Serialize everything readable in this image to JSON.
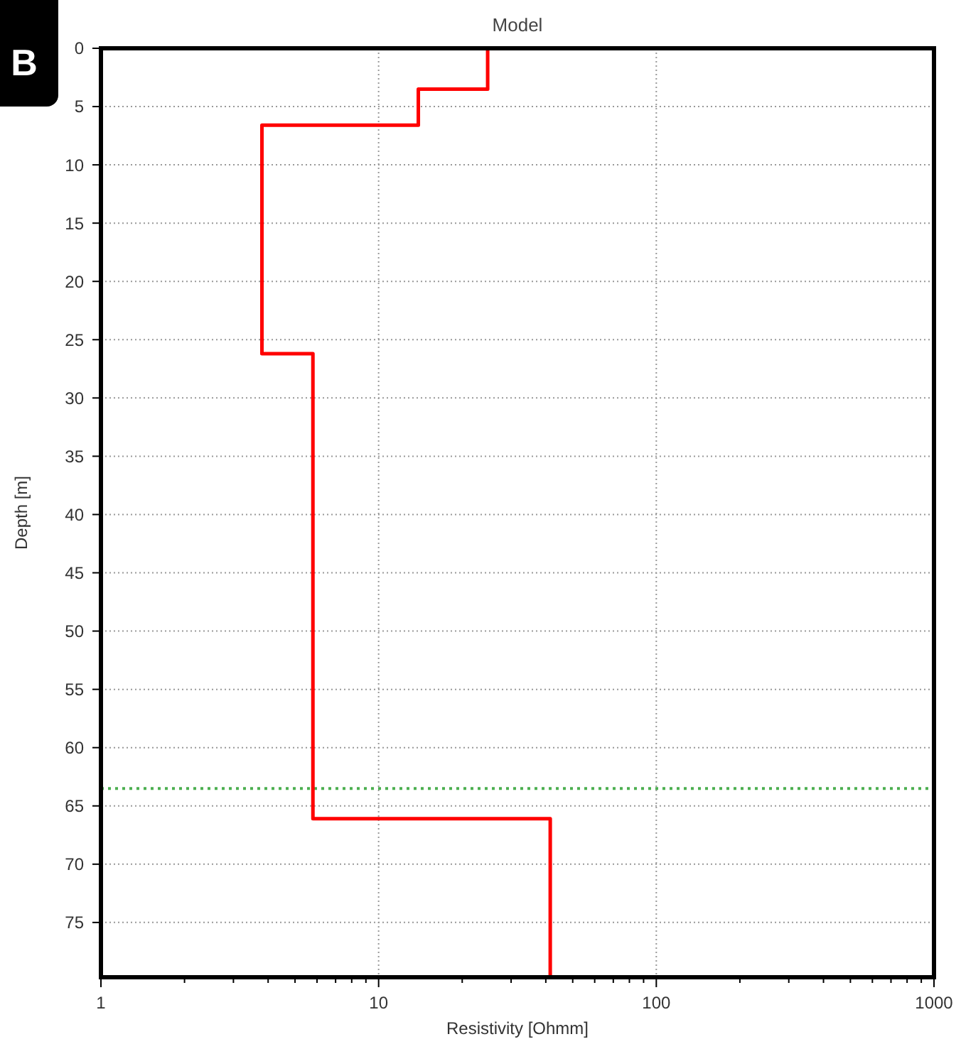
{
  "chart_data": {
    "type": "line",
    "title": "Model",
    "xlabel": "Resistivity [Ohmm]",
    "ylabel": "Depth [m]",
    "annotations": [
      "B"
    ],
    "log": "x",
    "xlim": [
      1,
      1000
    ],
    "ylim": [
      79.7,
      0
    ],
    "xticks": [
      1,
      {
        "value": 2,
        "label": null
      },
      {
        "value": 3,
        "label": null
      },
      {
        "value": 4,
        "label": null
      },
      {
        "value": 5,
        "label": null
      },
      {
        "value": 6,
        "label": null
      },
      {
        "value": 7,
        "label": null
      },
      {
        "value": 8,
        "label": null
      },
      {
        "value": 9,
        "label": null
      },
      10,
      {
        "value": 20,
        "label": null
      },
      {
        "value": 30,
        "label": null
      },
      {
        "value": 40,
        "label": null
      },
      {
        "value": 50,
        "label": null
      },
      {
        "value": 60,
        "label": null
      },
      {
        "value": 70,
        "label": null
      },
      {
        "value": 80,
        "label": null
      },
      {
        "value": 90,
        "label": null
      },
      100,
      {
        "value": 200,
        "label": null
      },
      {
        "value": 300,
        "label": null
      },
      {
        "value": 400,
        "label": null
      },
      {
        "value": 500,
        "label": null
      },
      {
        "value": 600,
        "label": null
      },
      {
        "value": 700,
        "label": null
      },
      {
        "value": 800,
        "label": null
      },
      {
        "value": 900,
        "label": null
      },
      1000
    ],
    "yticks": [
      0,
      5,
      10,
      15,
      20,
      25,
      30,
      35,
      40,
      45,
      50,
      55,
      60,
      65,
      70,
      75
    ],
    "grid": true,
    "marker": "none",
    "line_style": "solid",
    "series": [
      {
        "color": "#ff0000",
        "x": [
          24.7,
          24.7,
          13.9,
          13.9,
          3.8,
          3.8,
          5.8,
          5.8,
          41.5,
          41.5
        ],
        "values": [
          0,
          3.5,
          3.5,
          6.6,
          6.6,
          26.2,
          26.2,
          66.1,
          66.1,
          79.7
        ]
      }
    ],
    "ref_lines": [
      {
        "axis": "y",
        "value": 63.5,
        "color": "#4caf50",
        "line_style": "dotted"
      }
    ]
  }
}
